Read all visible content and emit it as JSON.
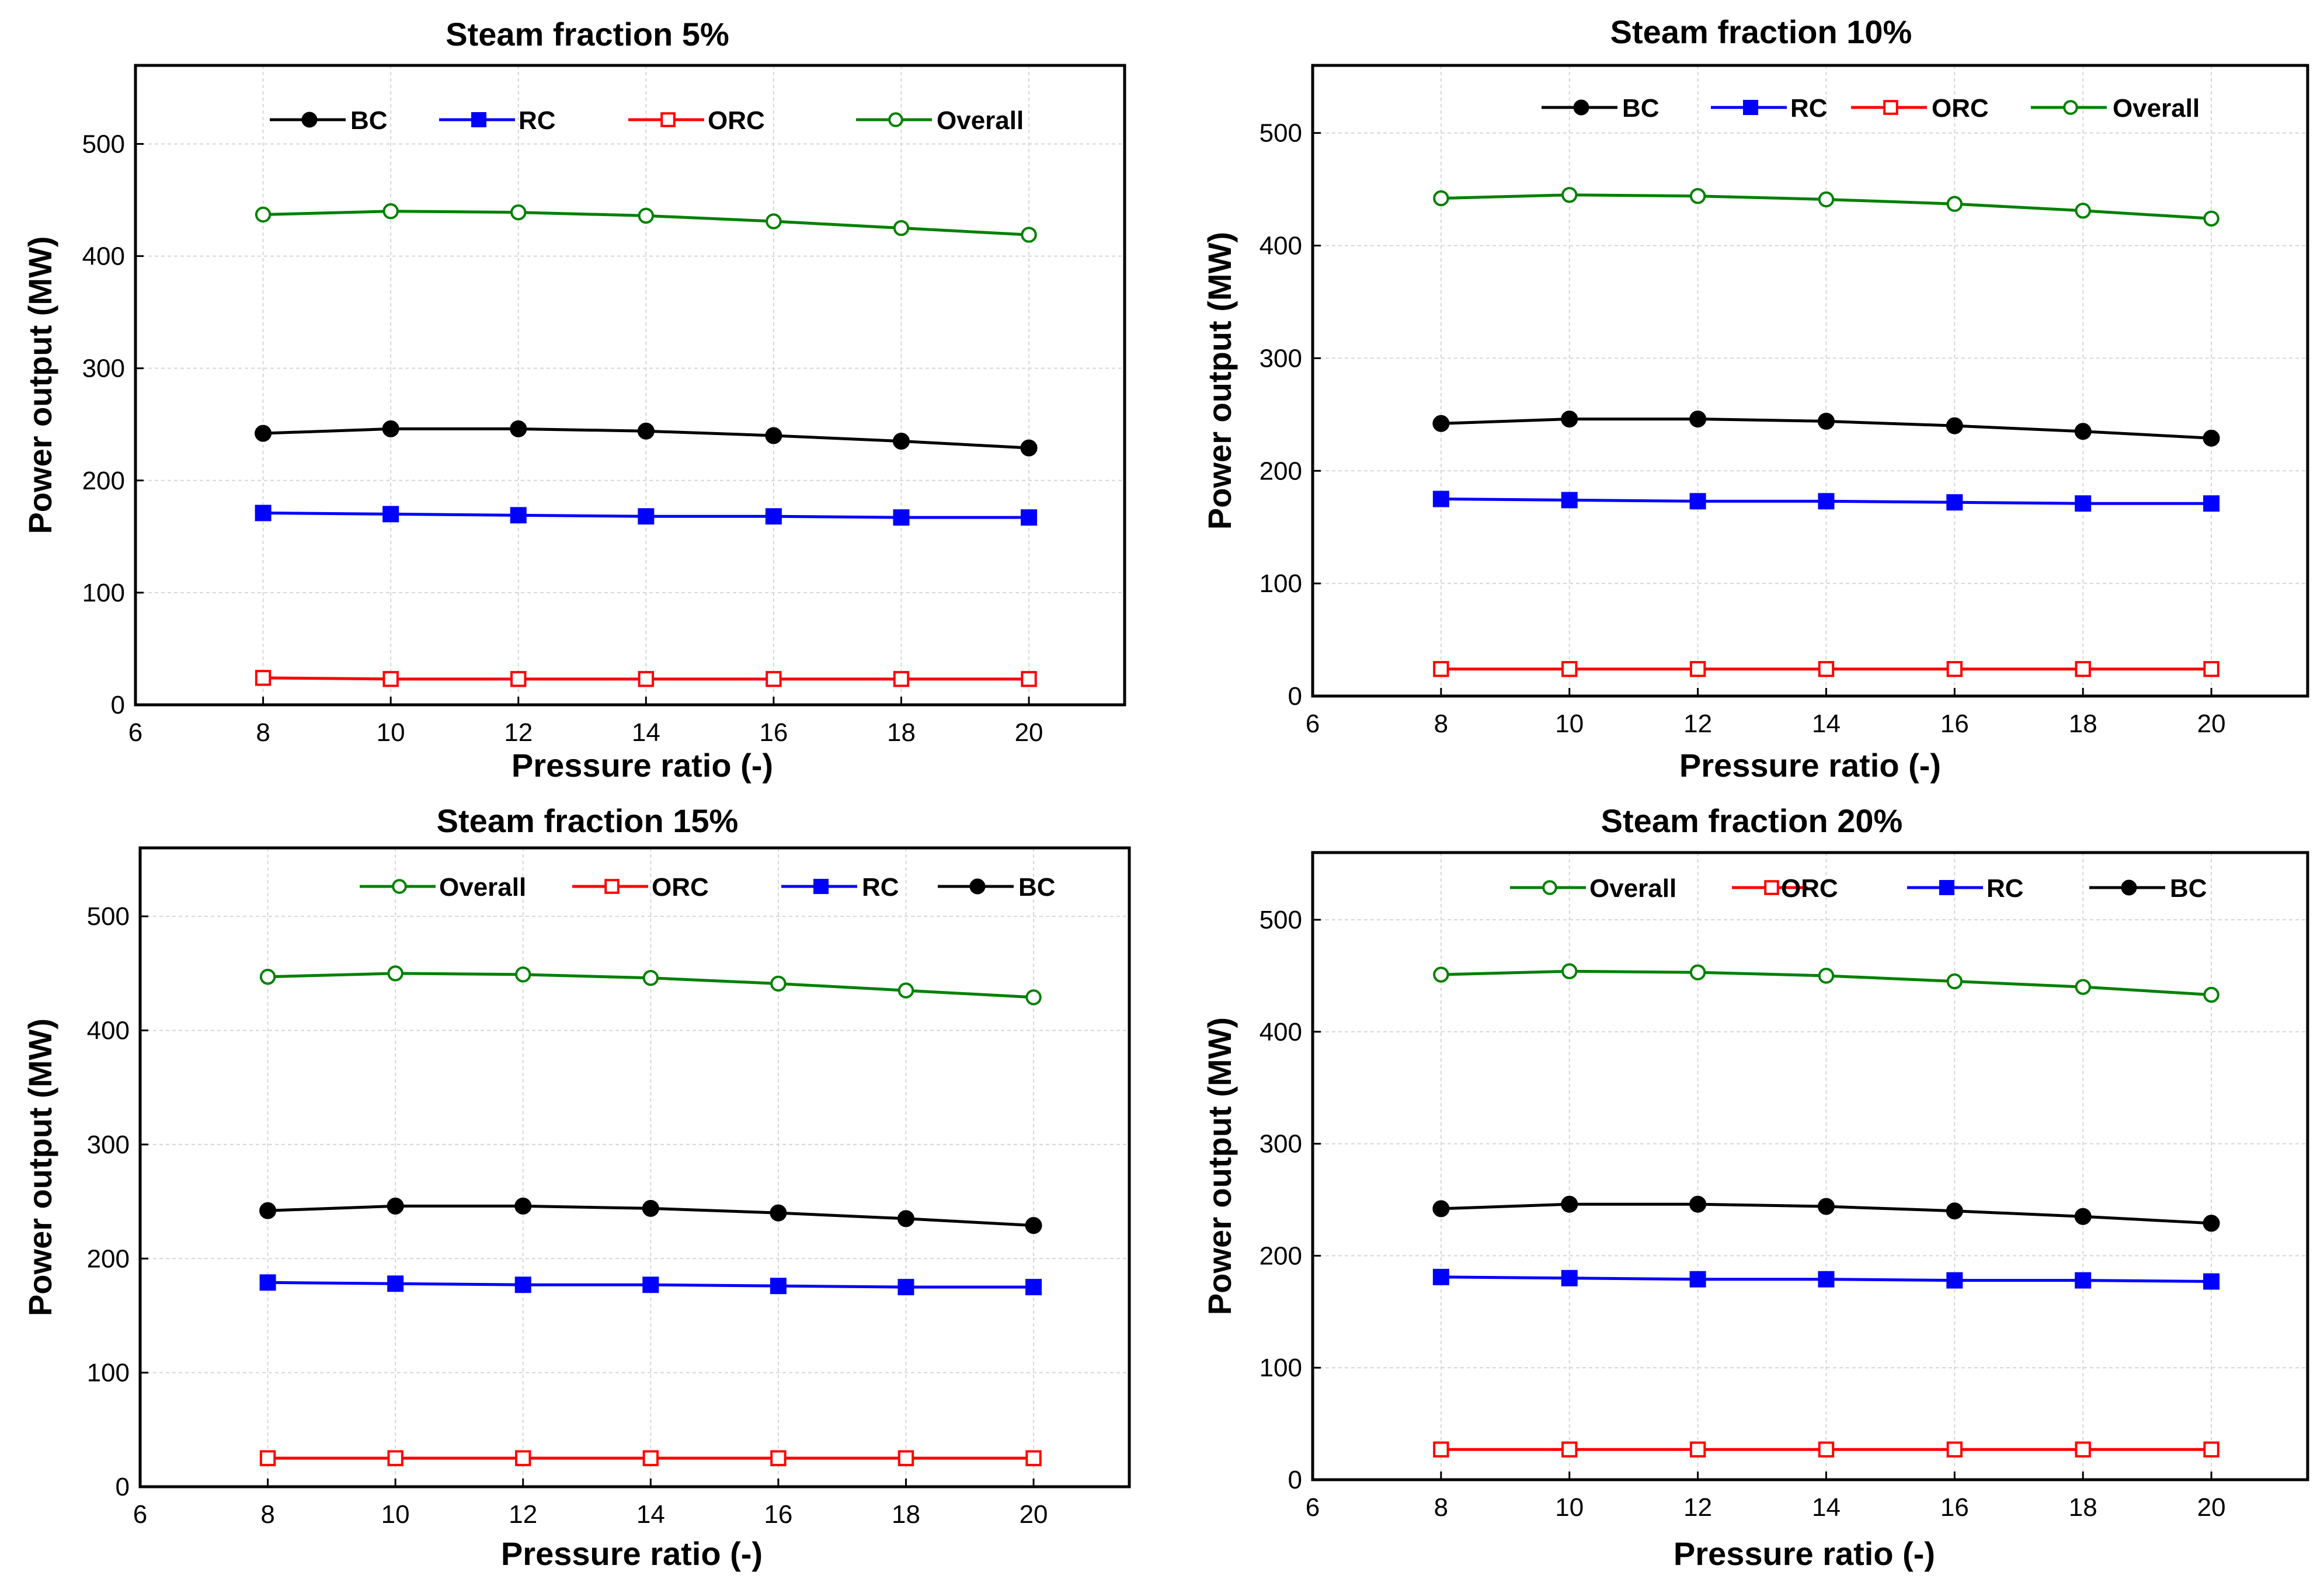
{
  "figure": {
    "xlabel": "Pressure ratio (-)",
    "ylabel": "Power output (MW)"
  },
  "chart_data": [
    {
      "type": "line",
      "title": "Steam fraction 5%",
      "xlabel": "Pressure ratio (-)",
      "ylabel": "Power output (MW)",
      "xlim": [
        6,
        21.5
      ],
      "ylim": [
        0,
        570
      ],
      "xticks": [
        6,
        8,
        10,
        12,
        14,
        16,
        18,
        20
      ],
      "yticks": [
        0,
        100,
        200,
        300,
        400,
        500
      ],
      "grid": true,
      "x": [
        8,
        10,
        12,
        14,
        16,
        18,
        20
      ],
      "legend_order": [
        "BC",
        "RC",
        "ORC",
        "Overall"
      ],
      "series": [
        {
          "name": "BC",
          "color": "#000000",
          "marker": "circle-filled",
          "values": [
            242,
            246,
            246,
            244,
            240,
            235,
            229
          ]
        },
        {
          "name": "RC",
          "color": "#0000ff",
          "marker": "square-filled",
          "values": [
            171,
            170,
            169,
            168,
            168,
            167,
            167
          ]
        },
        {
          "name": "ORC",
          "color": "#ff0000",
          "marker": "square-open",
          "values": [
            24,
            23,
            23,
            23,
            23,
            23,
            23
          ]
        },
        {
          "name": "Overall",
          "color": "#008000",
          "marker": "circle-open",
          "values": [
            437,
            440,
            439,
            436,
            431,
            425,
            419
          ]
        }
      ]
    },
    {
      "type": "line",
      "title": "Steam fraction 10%",
      "xlabel": "Pressure ratio (-)",
      "ylabel": "Power output (MW)",
      "xlim": [
        6,
        21.5
      ],
      "ylim": [
        0,
        560
      ],
      "xticks": [
        6,
        8,
        10,
        12,
        14,
        16,
        18,
        20
      ],
      "yticks": [
        0,
        100,
        200,
        300,
        400,
        500
      ],
      "grid": true,
      "x": [
        8,
        10,
        12,
        14,
        16,
        18,
        20
      ],
      "legend_order": [
        "BC",
        "RC",
        "ORC",
        "Overall"
      ],
      "series": [
        {
          "name": "BC",
          "color": "#000000",
          "marker": "circle-filled",
          "values": [
            242,
            246,
            246,
            244,
            240,
            235,
            229
          ]
        },
        {
          "name": "RC",
          "color": "#0000ff",
          "marker": "square-filled",
          "values": [
            175,
            174,
            173,
            173,
            172,
            171,
            171
          ]
        },
        {
          "name": "ORC",
          "color": "#ff0000",
          "marker": "square-open",
          "values": [
            24,
            24,
            24,
            24,
            24,
            24,
            24
          ]
        },
        {
          "name": "Overall",
          "color": "#008000",
          "marker": "circle-open",
          "values": [
            442,
            445,
            444,
            441,
            437,
            431,
            424
          ]
        }
      ]
    },
    {
      "type": "line",
      "title": "Steam fraction 15%",
      "xlabel": "Pressure ratio (-)",
      "ylabel": "Power output (MW)",
      "xlim": [
        6,
        21.5
      ],
      "ylim": [
        0,
        560
      ],
      "xticks": [
        6,
        8,
        10,
        12,
        14,
        16,
        18,
        20
      ],
      "yticks": [
        0,
        100,
        200,
        300,
        400,
        500
      ],
      "grid": true,
      "x": [
        8,
        10,
        12,
        14,
        16,
        18,
        20
      ],
      "legend_order": [
        "Overall",
        "ORC",
        "RC",
        "BC"
      ],
      "series": [
        {
          "name": "BC",
          "color": "#000000",
          "marker": "circle-filled",
          "values": [
            242,
            246,
            246,
            244,
            240,
            235,
            229
          ]
        },
        {
          "name": "RC",
          "color": "#0000ff",
          "marker": "square-filled",
          "values": [
            179,
            178,
            177,
            177,
            176,
            175,
            175
          ]
        },
        {
          "name": "ORC",
          "color": "#ff0000",
          "marker": "square-open",
          "values": [
            25,
            25,
            25,
            25,
            25,
            25,
            25
          ]
        },
        {
          "name": "Overall",
          "color": "#008000",
          "marker": "circle-open",
          "values": [
            447,
            450,
            449,
            446,
            441,
            435,
            429
          ]
        }
      ]
    },
    {
      "type": "line",
      "title": "Steam fraction 20%",
      "xlabel": "Pressure ratio (-)",
      "ylabel": "Power output (MW)",
      "xlim": [
        6,
        21.5
      ],
      "ylim": [
        0,
        560
      ],
      "xticks": [
        6,
        8,
        10,
        12,
        14,
        16,
        18,
        20
      ],
      "yticks": [
        0,
        100,
        200,
        300,
        400,
        500
      ],
      "grid": true,
      "x": [
        8,
        10,
        12,
        14,
        16,
        18,
        20
      ],
      "legend_order": [
        "Overall",
        "ORC",
        "RC",
        "BC"
      ],
      "series": [
        {
          "name": "BC",
          "color": "#000000",
          "marker": "circle-filled",
          "values": [
            242,
            246,
            246,
            244,
            240,
            235,
            229
          ]
        },
        {
          "name": "RC",
          "color": "#0000ff",
          "marker": "square-filled",
          "values": [
            181,
            180,
            179,
            179,
            178,
            178,
            177
          ]
        },
        {
          "name": "ORC",
          "color": "#ff0000",
          "marker": "square-open",
          "values": [
            27,
            27,
            27,
            27,
            27,
            27,
            27
          ]
        },
        {
          "name": "Overall",
          "color": "#008000",
          "marker": "circle-open",
          "values": [
            451,
            454,
            453,
            450,
            445,
            440,
            433
          ]
        }
      ]
    }
  ]
}
